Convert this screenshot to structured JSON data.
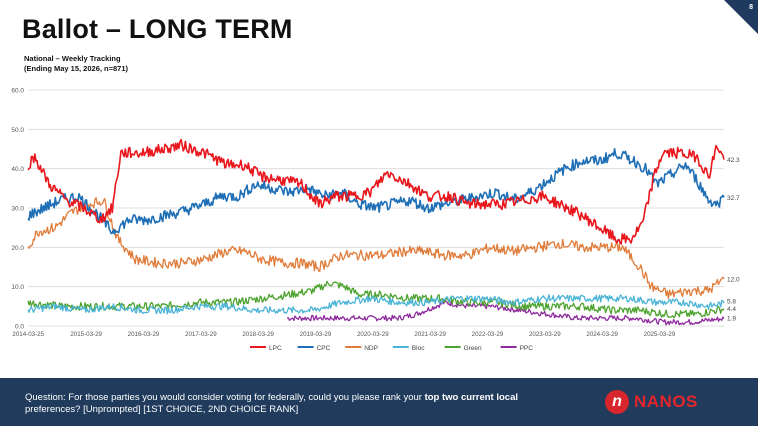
{
  "page": {
    "title": "Ballot – LONG TERM",
    "page_number": "8",
    "subtitle_line1": "National – Weekly Tracking",
    "subtitle_line2": "(Ending May 15, 2026, n=871)"
  },
  "footer": {
    "question_plain": "Question: For those parties you would consider voting for federally, could you please rank your ",
    "question_bold": "top two current local",
    "question_rest": " preferences? [Unprompted] [1ST CHOICE, 2ND CHOICE RANK]",
    "logo_text": "NANOS"
  },
  "colors": {
    "LPC": "#e8171d",
    "CPC": "#1f6fb6",
    "NDP": "#e07b39",
    "Bloc": "#4bb4d6",
    "Green": "#4da32f",
    "PPC": "#8e2a9e",
    "footer": "#203b5c"
  },
  "chart_data": {
    "type": "line",
    "x_ticks": [
      "2014-03-25",
      "2015-03-29",
      "2016-03-29",
      "2017-03-29",
      "2018-03-29",
      "2019-03-29",
      "2020-03-29",
      "2021-03-29",
      "2022-03-29",
      "2023-03-29",
      "2024-03-29",
      "2025-03-29"
    ],
    "xlim": [
      2014.23,
      2026.37
    ],
    "ylim": [
      0,
      60
    ],
    "y_ticks": [
      "0.0",
      "10.0",
      "20.0",
      "30.0",
      "40.0",
      "50.0",
      "60.0"
    ],
    "grid": true,
    "legend_position": "bottom",
    "end_labels": [
      "42.3",
      "32.7",
      "12.0",
      "5.8",
      "4.4",
      "1.9"
    ],
    "series": [
      {
        "name": "LPC",
        "end_label": "42.3",
        "points": [
          [
            2014.23,
            41
          ],
          [
            2014.35,
            43
          ],
          [
            2014.6,
            36
          ],
          [
            2014.9,
            32
          ],
          [
            2015.2,
            30
          ],
          [
            2015.5,
            27
          ],
          [
            2015.7,
            30
          ],
          [
            2015.85,
            44
          ],
          [
            2016.2,
            44
          ],
          [
            2016.6,
            45
          ],
          [
            2016.9,
            46
          ],
          [
            2017.3,
            44
          ],
          [
            2017.7,
            41
          ],
          [
            2018.0,
            41
          ],
          [
            2018.3,
            38
          ],
          [
            2018.7,
            37
          ],
          [
            2019.0,
            36
          ],
          [
            2019.3,
            31
          ],
          [
            2019.6,
            33
          ],
          [
            2019.9,
            33
          ],
          [
            2020.2,
            34
          ],
          [
            2020.5,
            39
          ],
          [
            2020.9,
            36
          ],
          [
            2021.2,
            33
          ],
          [
            2021.6,
            33
          ],
          [
            2021.9,
            31
          ],
          [
            2022.2,
            31
          ],
          [
            2022.5,
            31
          ],
          [
            2022.9,
            32
          ],
          [
            2023.2,
            33
          ],
          [
            2023.5,
            31
          ],
          [
            2023.9,
            28
          ],
          [
            2024.2,
            25
          ],
          [
            2024.5,
            22
          ],
          [
            2024.75,
            22
          ],
          [
            2024.95,
            26
          ],
          [
            2025.15,
            38
          ],
          [
            2025.3,
            44
          ],
          [
            2025.6,
            44
          ],
          [
            2025.9,
            43
          ],
          [
            2026.1,
            38
          ],
          [
            2026.25,
            46
          ],
          [
            2026.37,
            42.3
          ]
        ]
      },
      {
        "name": "CPC",
        "end_label": "32.7",
        "points": [
          [
            2014.23,
            28
          ],
          [
            2014.5,
            30
          ],
          [
            2014.8,
            32
          ],
          [
            2015.1,
            33
          ],
          [
            2015.4,
            29
          ],
          [
            2015.7,
            24
          ],
          [
            2016.0,
            27
          ],
          [
            2016.3,
            27
          ],
          [
            2016.6,
            28
          ],
          [
            2016.9,
            29
          ],
          [
            2017.3,
            31
          ],
          [
            2017.6,
            33
          ],
          [
            2017.9,
            33
          ],
          [
            2018.2,
            36
          ],
          [
            2018.5,
            35
          ],
          [
            2018.8,
            34
          ],
          [
            2019.1,
            35
          ],
          [
            2019.4,
            33
          ],
          [
            2019.7,
            34
          ],
          [
            2020.0,
            31
          ],
          [
            2020.3,
            30
          ],
          [
            2020.6,
            31
          ],
          [
            2020.9,
            32
          ],
          [
            2021.2,
            30
          ],
          [
            2021.5,
            31
          ],
          [
            2021.8,
            32
          ],
          [
            2022.1,
            33
          ],
          [
            2022.4,
            34
          ],
          [
            2022.7,
            32
          ],
          [
            2023.0,
            34
          ],
          [
            2023.3,
            37
          ],
          [
            2023.6,
            40
          ],
          [
            2023.9,
            42
          ],
          [
            2024.2,
            42
          ],
          [
            2024.5,
            44
          ],
          [
            2024.8,
            42
          ],
          [
            2025.0,
            40
          ],
          [
            2025.2,
            36
          ],
          [
            2025.4,
            38
          ],
          [
            2025.7,
            41
          ],
          [
            2025.9,
            37
          ],
          [
            2026.1,
            32
          ],
          [
            2026.25,
            31
          ],
          [
            2026.37,
            32.7
          ]
        ]
      },
      {
        "name": "NDP",
        "end_label": "12.0",
        "points": [
          [
            2014.23,
            20
          ],
          [
            2014.4,
            24
          ],
          [
            2014.7,
            25
          ],
          [
            2015.0,
            29
          ],
          [
            2015.3,
            31
          ],
          [
            2015.55,
            32
          ],
          [
            2015.8,
            22
          ],
          [
            2016.1,
            17
          ],
          [
            2016.5,
            16
          ],
          [
            2016.9,
            16
          ],
          [
            2017.3,
            17
          ],
          [
            2017.7,
            19
          ],
          [
            2018.0,
            19
          ],
          [
            2018.3,
            17
          ],
          [
            2018.7,
            16
          ],
          [
            2019.0,
            16
          ],
          [
            2019.3,
            15
          ],
          [
            2019.7,
            18
          ],
          [
            2020.0,
            18
          ],
          [
            2020.4,
            18
          ],
          [
            2020.8,
            19
          ],
          [
            2021.1,
            19
          ],
          [
            2021.5,
            18
          ],
          [
            2021.9,
            18
          ],
          [
            2022.3,
            20
          ],
          [
            2022.7,
            19
          ],
          [
            2023.1,
            20
          ],
          [
            2023.5,
            21
          ],
          [
            2023.9,
            20
          ],
          [
            2024.2,
            20
          ],
          [
            2024.6,
            20
          ],
          [
            2024.9,
            15
          ],
          [
            2025.1,
            10
          ],
          [
            2025.4,
            8
          ],
          [
            2025.8,
            9
          ],
          [
            2026.1,
            9
          ],
          [
            2026.37,
            12.0
          ]
        ]
      },
      {
        "name": "Bloc",
        "end_label": "5.8",
        "points": [
          [
            2014.23,
            4
          ],
          [
            2014.7,
            5
          ],
          [
            2015.2,
            4
          ],
          [
            2015.7,
            5
          ],
          [
            2016.2,
            4
          ],
          [
            2016.7,
            4
          ],
          [
            2017.2,
            5
          ],
          [
            2017.7,
            5
          ],
          [
            2018.2,
            4
          ],
          [
            2018.7,
            4
          ],
          [
            2019.2,
            4
          ],
          [
            2019.7,
            6
          ],
          [
            2020.2,
            7
          ],
          [
            2020.7,
            6
          ],
          [
            2021.2,
            6
          ],
          [
            2021.7,
            7
          ],
          [
            2022.2,
            7
          ],
          [
            2022.7,
            6
          ],
          [
            2023.2,
            7
          ],
          [
            2023.7,
            7
          ],
          [
            2024.2,
            7
          ],
          [
            2024.7,
            7
          ],
          [
            2025.2,
            6
          ],
          [
            2025.7,
            6
          ],
          [
            2026.1,
            5
          ],
          [
            2026.37,
            5.8
          ]
        ]
      },
      {
        "name": "Green",
        "end_label": "4.4",
        "points": [
          [
            2014.23,
            6
          ],
          [
            2014.8,
            5
          ],
          [
            2015.4,
            5
          ],
          [
            2016.0,
            5
          ],
          [
            2016.6,
            5
          ],
          [
            2017.2,
            6
          ],
          [
            2017.8,
            6
          ],
          [
            2018.3,
            7
          ],
          [
            2018.8,
            8
          ],
          [
            2019.2,
            9
          ],
          [
            2019.5,
            11
          ],
          [
            2019.75,
            10
          ],
          [
            2020.0,
            8
          ],
          [
            2020.4,
            8
          ],
          [
            2020.9,
            7
          ],
          [
            2021.4,
            7
          ],
          [
            2021.9,
            6
          ],
          [
            2022.4,
            6
          ],
          [
            2022.9,
            5
          ],
          [
            2023.4,
            5
          ],
          [
            2023.9,
            5
          ],
          [
            2024.4,
            4
          ],
          [
            2024.9,
            4
          ],
          [
            2025.4,
            3
          ],
          [
            2025.9,
            3
          ],
          [
            2026.37,
            4.4
          ]
        ]
      },
      {
        "name": "PPC",
        "end_label": "1.9",
        "points": [
          [
            2018.75,
            2
          ],
          [
            2019.2,
            2
          ],
          [
            2019.7,
            2
          ],
          [
            2020.2,
            2
          ],
          [
            2020.7,
            2
          ],
          [
            2021.0,
            3
          ],
          [
            2021.5,
            6
          ],
          [
            2021.9,
            5
          ],
          [
            2022.3,
            5
          ],
          [
            2022.8,
            4
          ],
          [
            2023.3,
            3
          ],
          [
            2023.8,
            2
          ],
          [
            2024.3,
            2
          ],
          [
            2024.8,
            2
          ],
          [
            2025.3,
            1
          ],
          [
            2025.8,
            1
          ],
          [
            2026.37,
            1.9
          ]
        ]
      }
    ]
  }
}
